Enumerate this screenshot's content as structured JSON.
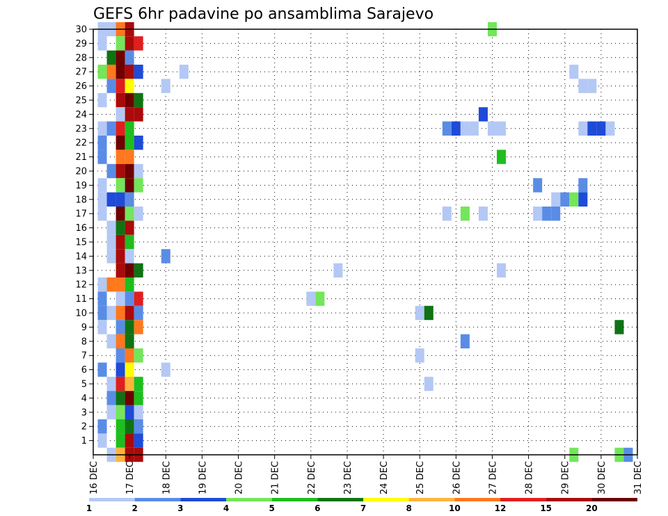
{
  "chart_data": {
    "type": "heatmap",
    "title": "GEFS 6hr padavine po ansamblima Sarajevo",
    "xlabel": "",
    "ylabel": "",
    "x_ticks": [
      "16 DEC",
      "17 DEC",
      "18 DEC",
      "19 DEC",
      "20 DEC",
      "21 DEC",
      "22 DEC",
      "23 DEC",
      "24 DEC",
      "25 DEC",
      "26 DEC",
      "27 DEC",
      "28 DEC",
      "29 DEC",
      "30 DEC",
      "31 DEC"
    ],
    "x_range_days": [
      0,
      15
    ],
    "y_ticks": [
      1,
      2,
      3,
      4,
      5,
      6,
      7,
      8,
      9,
      10,
      11,
      12,
      13,
      14,
      15,
      16,
      17,
      18,
      19,
      20,
      21,
      22,
      23,
      24,
      25,
      26,
      27,
      28,
      29,
      30
    ],
    "y_range": [
      0,
      30
    ],
    "grid": true,
    "colorbar": {
      "levels": [
        "1",
        "2",
        "3",
        "4",
        "5",
        "6",
        "7",
        "8",
        "10",
        "12",
        "15",
        "20"
      ],
      "colors": [
        "#b4c8f5",
        "#5a8ce6",
        "#1e4bd7",
        "#73e65a",
        "#1ebe1e",
        "#0f7314",
        "#ffff00",
        "#ffb43c",
        "#ff781e",
        "#e11e1e",
        "#aa0a0a",
        "#6e0000"
      ]
    },
    "cells": [
      {
        "m": 30,
        "d": 0.25,
        "v": 1
      },
      {
        "m": 30,
        "d": 0.5,
        "v": 1
      },
      {
        "m": 30,
        "d": 0.75,
        "v": 10
      },
      {
        "m": 30,
        "d": 1.0,
        "v": 15
      },
      {
        "m": 30,
        "d": 11.0,
        "v": 4
      },
      {
        "m": 29,
        "d": 0.25,
        "v": 1
      },
      {
        "m": 29,
        "d": 0.75,
        "v": 4
      },
      {
        "m": 29,
        "d": 1.0,
        "v": 15
      },
      {
        "m": 29,
        "d": 1.25,
        "v": 12
      },
      {
        "m": 28,
        "d": 0.5,
        "v": 6
      },
      {
        "m": 28,
        "d": 0.75,
        "v": 20
      },
      {
        "m": 28,
        "d": 1.0,
        "v": 2
      },
      {
        "m": 27,
        "d": 0.25,
        "v": 4
      },
      {
        "m": 27,
        "d": 0.5,
        "v": 10
      },
      {
        "m": 27,
        "d": 0.75,
        "v": 20
      },
      {
        "m": 27,
        "d": 1.0,
        "v": 15
      },
      {
        "m": 27,
        "d": 1.25,
        "v": 3
      },
      {
        "m": 27,
        "d": 2.5,
        "v": 1
      },
      {
        "m": 27,
        "d": 13.25,
        "v": 1
      },
      {
        "m": 26,
        "d": 0.5,
        "v": 2
      },
      {
        "m": 26,
        "d": 0.75,
        "v": 12
      },
      {
        "m": 26,
        "d": 1.0,
        "v": 7
      },
      {
        "m": 26,
        "d": 2.0,
        "v": 1
      },
      {
        "m": 26,
        "d": 13.5,
        "v": 1
      },
      {
        "m": 26,
        "d": 13.75,
        "v": 1
      },
      {
        "m": 25,
        "d": 0.25,
        "v": 1
      },
      {
        "m": 25,
        "d": 0.75,
        "v": 15
      },
      {
        "m": 25,
        "d": 1.0,
        "v": 20
      },
      {
        "m": 25,
        "d": 1.25,
        "v": 6
      },
      {
        "m": 24,
        "d": 0.75,
        "v": 1
      },
      {
        "m": 24,
        "d": 1.0,
        "v": 15
      },
      {
        "m": 24,
        "d": 1.25,
        "v": 15
      },
      {
        "m": 24,
        "d": 10.75,
        "v": 3
      },
      {
        "m": 23,
        "d": 0.25,
        "v": 1
      },
      {
        "m": 23,
        "d": 0.5,
        "v": 2
      },
      {
        "m": 23,
        "d": 0.75,
        "v": 12
      },
      {
        "m": 23,
        "d": 1.0,
        "v": 5
      },
      {
        "m": 23,
        "d": 9.75,
        "v": 2
      },
      {
        "m": 23,
        "d": 10.0,
        "v": 3
      },
      {
        "m": 23,
        "d": 10.25,
        "v": 1
      },
      {
        "m": 23,
        "d": 10.5,
        "v": 1
      },
      {
        "m": 23,
        "d": 11.0,
        "v": 1
      },
      {
        "m": 23,
        "d": 11.25,
        "v": 1
      },
      {
        "m": 23,
        "d": 13.5,
        "v": 1
      },
      {
        "m": 23,
        "d": 13.75,
        "v": 3
      },
      {
        "m": 23,
        "d": 14.0,
        "v": 3
      },
      {
        "m": 23,
        "d": 14.25,
        "v": 1
      },
      {
        "m": 22,
        "d": 0.25,
        "v": 2
      },
      {
        "m": 22,
        "d": 0.75,
        "v": 20
      },
      {
        "m": 22,
        "d": 1.0,
        "v": 5
      },
      {
        "m": 22,
        "d": 1.25,
        "v": 3
      },
      {
        "m": 21,
        "d": 0.25,
        "v": 2
      },
      {
        "m": 21,
        "d": 0.75,
        "v": 10
      },
      {
        "m": 21,
        "d": 1.0,
        "v": 10
      },
      {
        "m": 21,
        "d": 11.25,
        "v": 5
      },
      {
        "m": 20,
        "d": 0.5,
        "v": 2
      },
      {
        "m": 20,
        "d": 0.75,
        "v": 15
      },
      {
        "m": 20,
        "d": 1.0,
        "v": 20
      },
      {
        "m": 20,
        "d": 1.25,
        "v": 1
      },
      {
        "m": 19,
        "d": 0.25,
        "v": 1
      },
      {
        "m": 19,
        "d": 0.75,
        "v": 4
      },
      {
        "m": 19,
        "d": 1.0,
        "v": 20
      },
      {
        "m": 19,
        "d": 1.25,
        "v": 4
      },
      {
        "m": 19,
        "d": 12.25,
        "v": 2
      },
      {
        "m": 19,
        "d": 13.5,
        "v": 2
      },
      {
        "m": 18,
        "d": 0.25,
        "v": 1
      },
      {
        "m": 18,
        "d": 0.5,
        "v": 3
      },
      {
        "m": 18,
        "d": 0.75,
        "v": 3
      },
      {
        "m": 18,
        "d": 1.0,
        "v": 2
      },
      {
        "m": 18,
        "d": 12.75,
        "v": 1
      },
      {
        "m": 18,
        "d": 13.0,
        "v": 2
      },
      {
        "m": 18,
        "d": 13.25,
        "v": 4
      },
      {
        "m": 18,
        "d": 13.5,
        "v": 3
      },
      {
        "m": 17,
        "d": 0.25,
        "v": 1
      },
      {
        "m": 17,
        "d": 0.75,
        "v": 20
      },
      {
        "m": 17,
        "d": 1.0,
        "v": 4
      },
      {
        "m": 17,
        "d": 1.25,
        "v": 1
      },
      {
        "m": 17,
        "d": 9.75,
        "v": 1
      },
      {
        "m": 17,
        "d": 10.25,
        "v": 4
      },
      {
        "m": 17,
        "d": 10.75,
        "v": 1
      },
      {
        "m": 17,
        "d": 12.25,
        "v": 1
      },
      {
        "m": 17,
        "d": 12.5,
        "v": 2
      },
      {
        "m": 17,
        "d": 12.75,
        "v": 2
      },
      {
        "m": 16,
        "d": 0.5,
        "v": 1
      },
      {
        "m": 16,
        "d": 0.75,
        "v": 6
      },
      {
        "m": 16,
        "d": 1.0,
        "v": 15
      },
      {
        "m": 15,
        "d": 0.5,
        "v": 1
      },
      {
        "m": 15,
        "d": 0.75,
        "v": 15
      },
      {
        "m": 15,
        "d": 1.0,
        "v": 5
      },
      {
        "m": 14,
        "d": 0.5,
        "v": 1
      },
      {
        "m": 14,
        "d": 0.75,
        "v": 15
      },
      {
        "m": 14,
        "d": 1.0,
        "v": 1
      },
      {
        "m": 14,
        "d": 2.0,
        "v": 2
      },
      {
        "m": 13,
        "d": 0.75,
        "v": 15
      },
      {
        "m": 13,
        "d": 1.0,
        "v": 20
      },
      {
        "m": 13,
        "d": 1.25,
        "v": 6
      },
      {
        "m": 13,
        "d": 6.75,
        "v": 1
      },
      {
        "m": 13,
        "d": 11.25,
        "v": 1
      },
      {
        "m": 12,
        "d": 0.25,
        "v": 1
      },
      {
        "m": 12,
        "d": 0.5,
        "v": 10
      },
      {
        "m": 12,
        "d": 0.75,
        "v": 10
      },
      {
        "m": 12,
        "d": 1.0,
        "v": 5
      },
      {
        "m": 11,
        "d": 0.25,
        "v": 2
      },
      {
        "m": 11,
        "d": 0.75,
        "v": 1
      },
      {
        "m": 11,
        "d": 1.0,
        "v": 2
      },
      {
        "m": 11,
        "d": 1.25,
        "v": 12
      },
      {
        "m": 11,
        "d": 6.0,
        "v": 1
      },
      {
        "m": 11,
        "d": 6.25,
        "v": 4
      },
      {
        "m": 10,
        "d": 0.25,
        "v": 2
      },
      {
        "m": 10,
        "d": 0.5,
        "v": 1
      },
      {
        "m": 10,
        "d": 0.75,
        "v": 10
      },
      {
        "m": 10,
        "d": 1.0,
        "v": 15
      },
      {
        "m": 10,
        "d": 1.25,
        "v": 2
      },
      {
        "m": 10,
        "d": 9.0,
        "v": 1
      },
      {
        "m": 10,
        "d": 9.25,
        "v": 6
      },
      {
        "m": 9,
        "d": 0.25,
        "v": 1
      },
      {
        "m": 9,
        "d": 0.75,
        "v": 2
      },
      {
        "m": 9,
        "d": 1.0,
        "v": 6
      },
      {
        "m": 9,
        "d": 1.25,
        "v": 10
      },
      {
        "m": 9,
        "d": 14.5,
        "v": 6
      },
      {
        "m": 8,
        "d": 0.5,
        "v": 1
      },
      {
        "m": 8,
        "d": 0.75,
        "v": 10
      },
      {
        "m": 8,
        "d": 1.0,
        "v": 6
      },
      {
        "m": 8,
        "d": 10.25,
        "v": 2
      },
      {
        "m": 7,
        "d": 0.75,
        "v": 2
      },
      {
        "m": 7,
        "d": 1.0,
        "v": 10
      },
      {
        "m": 7,
        "d": 1.25,
        "v": 4
      },
      {
        "m": 7,
        "d": 9.0,
        "v": 1
      },
      {
        "m": 6,
        "d": 0.25,
        "v": 2
      },
      {
        "m": 6,
        "d": 0.75,
        "v": 3
      },
      {
        "m": 6,
        "d": 1.0,
        "v": 7
      },
      {
        "m": 6,
        "d": 2.0,
        "v": 1
      },
      {
        "m": 5,
        "d": 0.5,
        "v": 1
      },
      {
        "m": 5,
        "d": 0.75,
        "v": 12
      },
      {
        "m": 5,
        "d": 1.0,
        "v": 8
      },
      {
        "m": 5,
        "d": 1.25,
        "v": 5
      },
      {
        "m": 5,
        "d": 9.25,
        "v": 1
      },
      {
        "m": 4,
        "d": 0.5,
        "v": 2
      },
      {
        "m": 4,
        "d": 0.75,
        "v": 6
      },
      {
        "m": 4,
        "d": 1.0,
        "v": 20
      },
      {
        "m": 4,
        "d": 1.25,
        "v": 5
      },
      {
        "m": 3,
        "d": 0.5,
        "v": 1
      },
      {
        "m": 3,
        "d": 0.75,
        "v": 4
      },
      {
        "m": 3,
        "d": 1.0,
        "v": 3
      },
      {
        "m": 3,
        "d": 1.25,
        "v": 1
      },
      {
        "m": 2,
        "d": 0.25,
        "v": 2
      },
      {
        "m": 2,
        "d": 0.75,
        "v": 5
      },
      {
        "m": 2,
        "d": 1.0,
        "v": 6
      },
      {
        "m": 2,
        "d": 1.25,
        "v": 2
      },
      {
        "m": 1,
        "d": 0.25,
        "v": 1
      },
      {
        "m": 1,
        "d": 0.75,
        "v": 5
      },
      {
        "m": 1,
        "d": 1.0,
        "v": 15
      },
      {
        "m": 1,
        "d": 1.25,
        "v": 3
      },
      {
        "m": 0,
        "d": 0.5,
        "v": 1
      },
      {
        "m": 0,
        "d": 0.75,
        "v": 8
      },
      {
        "m": 0,
        "d": 1.0,
        "v": 15
      },
      {
        "m": 0,
        "d": 1.25,
        "v": 15
      },
      {
        "m": 0,
        "d": 13.25,
        "v": 4
      },
      {
        "m": 0,
        "d": 14.5,
        "v": 4
      },
      {
        "m": 0,
        "d": 14.75,
        "v": 2
      }
    ]
  }
}
